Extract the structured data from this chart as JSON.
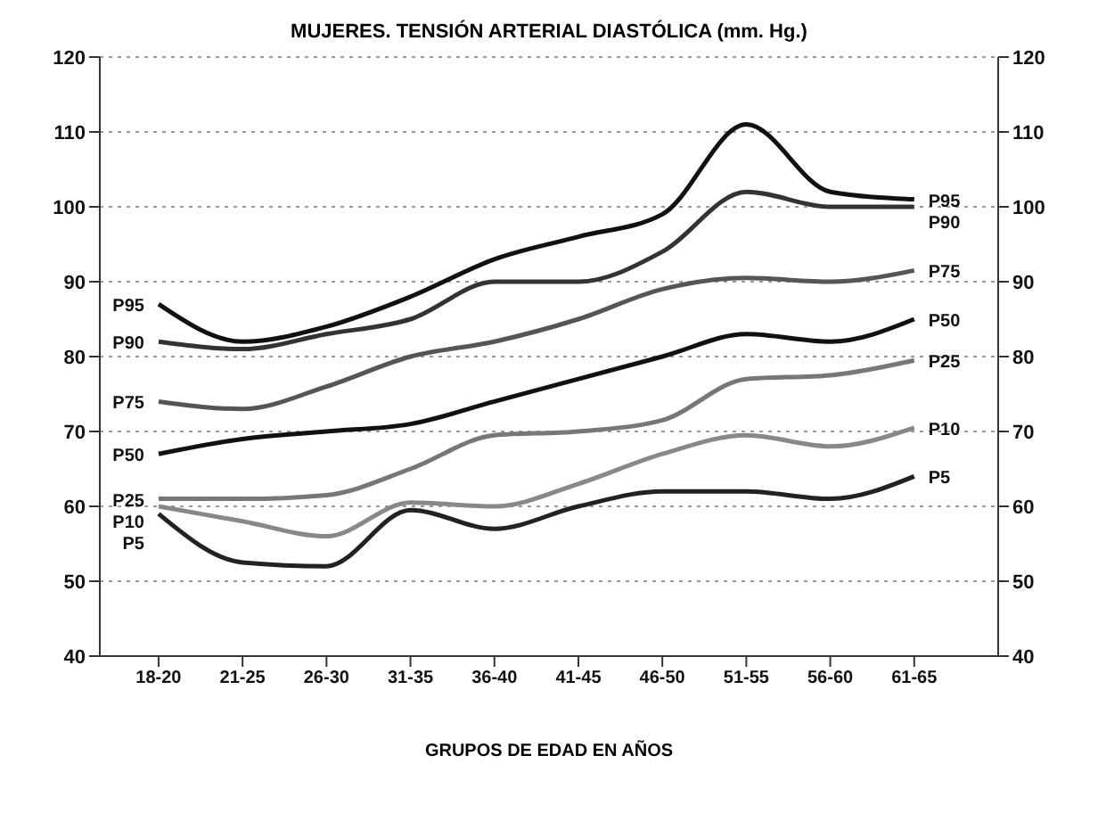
{
  "chart_data": {
    "type": "line",
    "title": "MUJERES. TENSIÓN ARTERIAL DIASTÓLICA (mm. Hg.)",
    "xlabel": "GRUPOS DE EDAD EN AÑOS",
    "categories": [
      "18-20",
      "21-25",
      "26-30",
      "31-35",
      "36-40",
      "41-45",
      "46-50",
      "51-55",
      "56-60",
      "61-65"
    ],
    "series": [
      {
        "name": "P95",
        "color": "#111111",
        "values": [
          87,
          82,
          84,
          88,
          93,
          96,
          99,
          111,
          102,
          101
        ]
      },
      {
        "name": "P90",
        "color": "#333333",
        "values": [
          82,
          81,
          83,
          85,
          90,
          90,
          94,
          102,
          100,
          100
        ]
      },
      {
        "name": "P75",
        "color": "#555555",
        "values": [
          74,
          73,
          76,
          80,
          82,
          85,
          89,
          90.5,
          90,
          91.5
        ]
      },
      {
        "name": "P50",
        "color": "#111111",
        "values": [
          67,
          69,
          70,
          71,
          74,
          77,
          80,
          83,
          82,
          85
        ]
      },
      {
        "name": "P25",
        "color": "#777777",
        "values": [
          61,
          61,
          61.5,
          65,
          69.5,
          70,
          71.5,
          77,
          77.5,
          79.5
        ]
      },
      {
        "name": "P10",
        "color": "#888888",
        "values": [
          60,
          58,
          56,
          60.5,
          60,
          63,
          67,
          69.5,
          68,
          70.5
        ]
      },
      {
        "name": "P5",
        "color": "#222222",
        "values": [
          59,
          52.5,
          52,
          59.5,
          57,
          60,
          62,
          62,
          61,
          64
        ]
      }
    ],
    "ylim": [
      40,
      120
    ],
    "yticks": [
      40,
      50,
      60,
      70,
      80,
      90,
      100,
      110,
      120
    ],
    "y2lim": [
      40,
      120
    ],
    "y2ticks": [
      40,
      50,
      60,
      70,
      80,
      90,
      100,
      110,
      120
    ],
    "grid": "y",
    "marker": "none",
    "line_style": "solid"
  }
}
